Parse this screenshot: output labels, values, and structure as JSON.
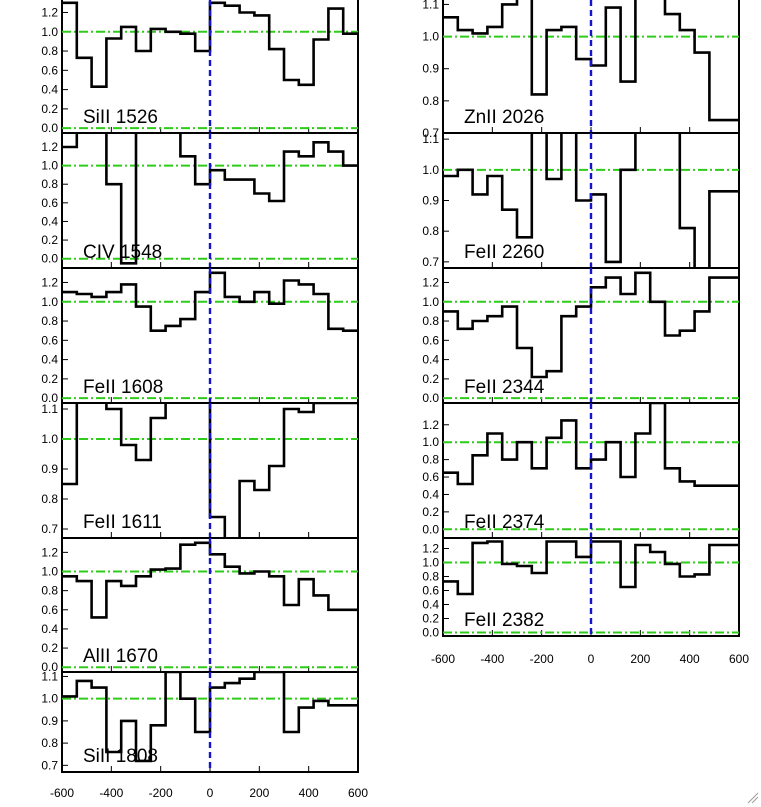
{
  "figure": {
    "x_ticks": [
      "-600",
      "-400",
      "-200",
      "0",
      "200",
      "400",
      "600"
    ],
    "colors": {
      "spectrum": "#000000",
      "continuum_line": "#2ecc1a",
      "velocity_zero": "#1414cc"
    }
  },
  "chart_data": [
    {
      "type": "line",
      "step": true,
      "label": "SiII 1526",
      "xlim": [
        -600,
        600
      ],
      "ylim": [
        -0.05,
        1.35
      ],
      "yticks": [
        0.0,
        0.2,
        0.4,
        0.6,
        0.8,
        1.0,
        1.2
      ],
      "ytick_labels": [
        "0.0",
        "0.2",
        "0.4",
        "0.6",
        "0.8",
        "1.0",
        "1.2"
      ],
      "ref_lines": [
        0.0,
        1.0
      ],
      "x": [
        -600,
        -540,
        -480,
        -420,
        -360,
        -300,
        -240,
        -180,
        -120,
        -60,
        0,
        60,
        120,
        180,
        240,
        300,
        360,
        420,
        480,
        540
      ],
      "y": [
        1.3,
        0.73,
        0.43,
        0.93,
        1.05,
        0.8,
        1.03,
        1.0,
        0.98,
        0.8,
        1.3,
        1.27,
        1.2,
        1.17,
        0.82,
        0.5,
        0.45,
        0.92,
        1.24,
        0.98
      ]
    },
    {
      "type": "line",
      "step": true,
      "label": "CIV 1548",
      "xlim": [
        -600,
        600
      ],
      "ylim": [
        -0.1,
        1.35
      ],
      "yticks": [
        0.0,
        0.2,
        0.4,
        0.6,
        0.8,
        1.0,
        1.2
      ],
      "ytick_labels": [
        "0.0",
        "0.2",
        "0.4",
        "0.6",
        "0.8",
        "1.0",
        "1.2"
      ],
      "ref_lines": [
        0.0,
        1.0
      ],
      "x": [
        -600,
        -540,
        -480,
        -420,
        -360,
        -300,
        -240,
        -180,
        -120,
        -60,
        0,
        60,
        120,
        180,
        240,
        300,
        360,
        420,
        480,
        540
      ],
      "y": [
        1.2,
        1.45,
        1.45,
        0.8,
        -0.05,
        1.45,
        1.45,
        1.45,
        1.1,
        0.8,
        0.95,
        0.85,
        0.85,
        0.7,
        0.62,
        1.15,
        1.1,
        1.25,
        1.15,
        1.0
      ]
    },
    {
      "type": "line",
      "step": true,
      "label": "FeII 1608",
      "xlim": [
        -600,
        600
      ],
      "ylim": [
        -0.05,
        1.35
      ],
      "yticks": [
        0.0,
        0.2,
        0.4,
        0.6,
        0.8,
        1.0,
        1.2
      ],
      "ytick_labels": [
        "0.0",
        "0.2",
        "0.4",
        "0.6",
        "0.8",
        "1.0",
        "1.2"
      ],
      "ref_lines": [
        0.0,
        1.0
      ],
      "x": [
        -600,
        -540,
        -480,
        -420,
        -360,
        -300,
        -240,
        -180,
        -120,
        -60,
        0,
        60,
        120,
        180,
        240,
        300,
        360,
        420,
        480,
        540
      ],
      "y": [
        1.1,
        1.08,
        1.05,
        1.1,
        1.18,
        0.95,
        0.7,
        0.75,
        0.82,
        1.1,
        1.3,
        1.05,
        1.0,
        1.1,
        0.98,
        1.22,
        1.18,
        1.08,
        0.72,
        0.7
      ]
    },
    {
      "type": "line",
      "step": true,
      "label": "FeII 1611",
      "xlim": [
        -600,
        600
      ],
      "ylim": [
        0.67,
        1.12
      ],
      "yticks": [
        0.7,
        0.8,
        0.9,
        1.0,
        1.1
      ],
      "ytick_labels": [
        "0.7",
        "0.8",
        "0.9",
        "1.0",
        "1.1"
      ],
      "ref_lines": [
        1.0
      ],
      "x": [
        -600,
        -540,
        -480,
        -420,
        -360,
        -300,
        -240,
        -180,
        -120,
        -60,
        0,
        60,
        120,
        180,
        240,
        300,
        360,
        420,
        480,
        540
      ],
      "y": [
        0.85,
        1.15,
        1.15,
        1.1,
        0.98,
        0.93,
        1.07,
        1.15,
        1.15,
        1.15,
        0.74,
        0.66,
        0.86,
        0.83,
        0.91,
        1.1,
        1.09,
        1.12,
        1.12,
        1.12
      ]
    },
    {
      "type": "line",
      "step": true,
      "label": "AlII 1670",
      "xlim": [
        -600,
        600
      ],
      "ylim": [
        -0.05,
        1.35
      ],
      "yticks": [
        0.0,
        0.2,
        0.4,
        0.6,
        0.8,
        1.0,
        1.2
      ],
      "ytick_labels": [
        "0.0",
        "0.2",
        "0.4",
        "0.6",
        "0.8",
        "1.0",
        "1.2"
      ],
      "ref_lines": [
        0.0,
        1.0
      ],
      "x": [
        -600,
        -540,
        -480,
        -420,
        -360,
        -300,
        -240,
        -180,
        -120,
        -60,
        0,
        60,
        120,
        180,
        240,
        300,
        360,
        420,
        480,
        540
      ],
      "y": [
        0.95,
        0.9,
        0.52,
        0.9,
        0.85,
        0.95,
        1.02,
        1.03,
        1.28,
        1.3,
        1.18,
        1.05,
        0.98,
        1.0,
        0.95,
        0.65,
        0.92,
        0.75,
        0.6,
        0.6
      ]
    },
    {
      "type": "line",
      "step": true,
      "label": "SiII 1808",
      "xlim": [
        -600,
        600
      ],
      "ylim": [
        0.67,
        1.12
      ],
      "yticks": [
        0.7,
        0.8,
        0.9,
        1.0,
        1.1
      ],
      "ytick_labels": [
        "0.7",
        "0.8",
        "0.9",
        "1.0",
        "1.1"
      ],
      "ref_lines": [
        1.0
      ],
      "x": [
        -600,
        -540,
        -480,
        -420,
        -360,
        -300,
        -240,
        -180,
        -120,
        -60,
        0,
        60,
        120,
        180,
        240,
        300,
        360,
        420,
        480,
        540
      ],
      "y": [
        1.01,
        1.08,
        1.05,
        0.76,
        0.9,
        0.72,
        0.88,
        1.12,
        1.0,
        0.85,
        1.05,
        1.07,
        1.09,
        1.12,
        1.12,
        0.85,
        0.96,
        0.99,
        0.97,
        0.97
      ]
    },
    {
      "type": "line",
      "step": true,
      "label": "ZnII 2026",
      "xlim": [
        -600,
        600
      ],
      "ylim": [
        0.7,
        1.12
      ],
      "yticks": [
        0.7,
        0.8,
        0.9,
        1.0,
        1.1
      ],
      "ytick_labels": [
        "0.7",
        "0.8",
        "0.9",
        "1.0",
        "1.1"
      ],
      "ref_lines": [
        1.0
      ],
      "x": [
        -600,
        -540,
        -480,
        -420,
        -360,
        -300,
        -240,
        -180,
        -120,
        -60,
        0,
        60,
        120,
        180,
        240,
        300,
        360,
        420,
        480,
        540
      ],
      "y": [
        1.06,
        1.02,
        1.01,
        1.03,
        1.1,
        1.15,
        0.82,
        1.02,
        1.03,
        0.93,
        0.91,
        1.09,
        0.86,
        1.15,
        1.15,
        1.07,
        1.02,
        0.95,
        0.74,
        0.74
      ]
    },
    {
      "type": "line",
      "step": true,
      "label": "FeII 2260",
      "xlim": [
        -600,
        600
      ],
      "ylim": [
        0.68,
        1.12
      ],
      "yticks": [
        0.7,
        0.8,
        0.9,
        1.0,
        1.1
      ],
      "ytick_labels": [
        "0.7",
        "0.8",
        "0.9",
        "1.0",
        "1.1"
      ],
      "ref_lines": [
        1.0
      ],
      "x": [
        -600,
        -540,
        -480,
        -420,
        -360,
        -300,
        -240,
        -180,
        -120,
        -60,
        0,
        60,
        120,
        180,
        240,
        300,
        360,
        420,
        480,
        540
      ],
      "y": [
        0.98,
        1.0,
        0.92,
        0.98,
        0.87,
        0.78,
        1.15,
        0.97,
        1.15,
        0.9,
        0.92,
        0.7,
        1.0,
        1.15,
        1.15,
        1.15,
        0.81,
        0.65,
        0.93,
        0.93
      ]
    },
    {
      "type": "line",
      "step": true,
      "label": "FeII 2344",
      "xlim": [
        -600,
        600
      ],
      "ylim": [
        -0.05,
        1.35
      ],
      "yticks": [
        0.0,
        0.2,
        0.4,
        0.6,
        0.8,
        1.0,
        1.2
      ],
      "ytick_labels": [
        "0.0",
        "0.2",
        "0.4",
        "0.6",
        "0.8",
        "1.0",
        "1.2"
      ],
      "ref_lines": [
        0.0,
        1.0
      ],
      "x": [
        -600,
        -540,
        -480,
        -420,
        -360,
        -300,
        -240,
        -180,
        -120,
        -60,
        0,
        60,
        120,
        180,
        240,
        300,
        360,
        420,
        480,
        540
      ],
      "y": [
        0.9,
        0.72,
        0.8,
        0.85,
        0.95,
        0.52,
        0.22,
        0.28,
        0.85,
        0.95,
        1.15,
        1.25,
        1.08,
        1.3,
        1.0,
        0.65,
        0.7,
        0.9,
        1.25,
        1.25
      ]
    },
    {
      "type": "line",
      "step": true,
      "label": "FeII 2374",
      "xlim": [
        -600,
        600
      ],
      "ylim": [
        -0.1,
        1.45
      ],
      "yticks": [
        0.0,
        0.2,
        0.4,
        0.6,
        0.8,
        1.0,
        1.2
      ],
      "ytick_labels": [
        "0.0",
        "0.2",
        "0.4",
        "0.6",
        "0.8",
        "1.0",
        "1.2"
      ],
      "ref_lines": [
        0.0,
        1.0
      ],
      "x": [
        -600,
        -540,
        -480,
        -420,
        -360,
        -300,
        -240,
        -180,
        -120,
        -60,
        0,
        60,
        120,
        180,
        240,
        300,
        360,
        420,
        480,
        540
      ],
      "y": [
        0.65,
        0.52,
        0.85,
        1.1,
        0.8,
        1.0,
        0.7,
        1.05,
        1.25,
        0.7,
        0.8,
        1.0,
        0.6,
        1.1,
        1.45,
        0.7,
        0.55,
        0.5,
        0.5,
        0.5
      ]
    },
    {
      "type": "line",
      "step": true,
      "label": "FeII 2382",
      "xlim": [
        -600,
        600
      ],
      "ylim": [
        -0.05,
        1.35
      ],
      "yticks": [
        0.0,
        0.2,
        0.4,
        0.6,
        0.8,
        1.0,
        1.2
      ],
      "ytick_labels": [
        "0.0",
        "0.2",
        "0.4",
        "0.6",
        "0.8",
        "1.0",
        "1.2"
      ],
      "ref_lines": [
        0.0,
        1.0
      ],
      "x": [
        -600,
        -540,
        -480,
        -420,
        -360,
        -300,
        -240,
        -180,
        -120,
        -60,
        0,
        60,
        120,
        180,
        240,
        300,
        360,
        420,
        480,
        540
      ],
      "y": [
        0.73,
        0.55,
        1.28,
        1.3,
        0.98,
        0.95,
        0.85,
        1.3,
        1.3,
        1.08,
        1.3,
        1.3,
        0.65,
        1.25,
        1.15,
        0.98,
        0.8,
        0.83,
        1.25,
        1.25
      ]
    }
  ]
}
